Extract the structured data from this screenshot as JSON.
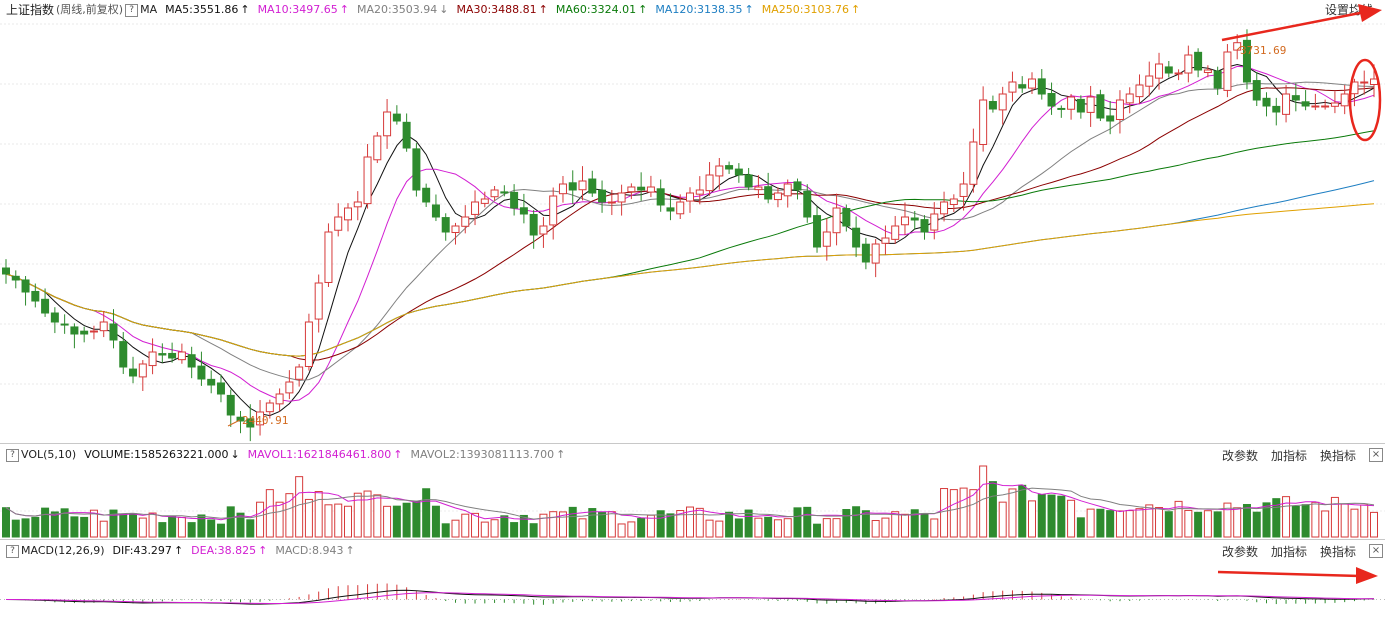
{
  "header": {
    "index_name": "上证指数",
    "mode": "(周线,前复权)",
    "help_glyph": "?",
    "ma_label": "MA",
    "ma_items": [
      {
        "label": "MA5:3551.86",
        "arrow": "↑",
        "color": "#111111"
      },
      {
        "label": "MA10:3497.65",
        "arrow": "↑",
        "color": "#d21fd2"
      },
      {
        "label": "MA20:3503.94",
        "arrow": "↓",
        "color": "#808080"
      },
      {
        "label": "MA30:3488.81",
        "arrow": "↑",
        "color": "#8b0000"
      },
      {
        "label": "MA60:3324.01",
        "arrow": "↑",
        "color": "#0a7a0a"
      },
      {
        "label": "MA120:3138.35",
        "arrow": "↑",
        "color": "#1d7ec2"
      },
      {
        "label": "MA250:3103.76",
        "arrow": "↑",
        "color": "#e0a000"
      }
    ],
    "settings_label": "设置均线"
  },
  "price_panel": {
    "high_label": "3731.69",
    "low_label": "2440.91"
  },
  "vol_panel": {
    "help_glyph": "?",
    "name": "VOL(5,10)",
    "volume": "VOLUME:1585263221.000",
    "volume_arrow": "↓",
    "mavol1": "MAVOL1:1621846461.800",
    "mavol1_arrow": "↑",
    "mavol2": "MAVOL2:1393081113.700",
    "mavol2_arrow": "↑",
    "actions": [
      "改参数",
      "加指标",
      "换指标"
    ],
    "close_glyph": "×"
  },
  "macd_panel": {
    "help_glyph": "?",
    "name": "MACD(12,26,9)",
    "dif": "DIF:43.297",
    "dif_arrow": "↑",
    "dea": "DEA:38.825",
    "dea_arrow": "↑",
    "macd": "MACD:8.943",
    "macd_arrow": "↑",
    "actions": [
      "改参数",
      "加指标",
      "换指标"
    ],
    "close_glyph": "×"
  },
  "colors": {
    "up": "#d63a3a",
    "down": "#2e8b2e",
    "annotation": "#e8271d",
    "ma5": "#111111",
    "ma10": "#d21fd2",
    "ma20": "#808080",
    "ma30": "#8b0000",
    "ma60": "#0a7a0a",
    "ma120": "#1d7ec2",
    "ma250": "#e0a000"
  },
  "chart_data": {
    "type": "candlestick",
    "price_range_estimate": [
      2400,
      3800
    ],
    "extremes": {
      "high": 3731.69,
      "low": 2440.91
    },
    "series_close_estimate": [
      2960,
      2940,
      2900,
      2870,
      2830,
      2800,
      2790,
      2760,
      2760,
      2770,
      2800,
      2740,
      2650,
      2620,
      2660,
      2700,
      2690,
      2680,
      2700,
      2650,
      2610,
      2590,
      2560,
      2490,
      2470,
      2450,
      2500,
      2530,
      2560,
      2600,
      2650,
      2800,
      2930,
      3100,
      3150,
      3180,
      3200,
      3350,
      3420,
      3500,
      3470,
      3380,
      3240,
      3200,
      3150,
      3100,
      3120,
      3150,
      3200,
      3210,
      3240,
      3230,
      3180,
      3160,
      3090,
      3120,
      3220,
      3260,
      3240,
      3270,
      3230,
      3200,
      3200,
      3230,
      3250,
      3240,
      3250,
      3190,
      3170,
      3200,
      3230,
      3240,
      3290,
      3320,
      3310,
      3290,
      3250,
      3250,
      3210,
      3230,
      3260,
      3240,
      3150,
      3050,
      3100,
      3180,
      3120,
      3050,
      3000,
      3060,
      3080,
      3120,
      3150,
      3140,
      3100,
      3160,
      3200,
      3210,
      3260,
      3400,
      3540,
      3510,
      3560,
      3600,
      3580,
      3610,
      3560,
      3520,
      3510,
      3550,
      3500,
      3550,
      3480,
      3470,
      3540,
      3560,
      3590,
      3620,
      3660,
      3630,
      3630,
      3690,
      3640,
      3640,
      3580,
      3700,
      3731,
      3600,
      3540,
      3520,
      3500,
      3560,
      3540,
      3520,
      3520,
      3520,
      3530,
      3560,
      3600,
      3600,
      3610
    ]
  }
}
